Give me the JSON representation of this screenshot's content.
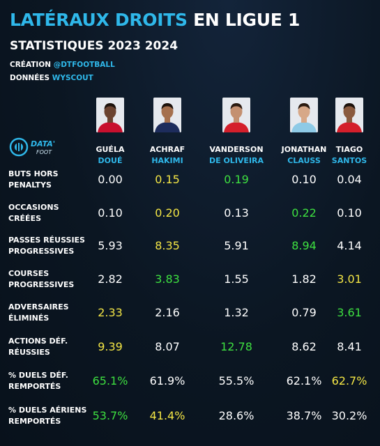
{
  "header": {
    "title_accent": "LATÉRAUX DROITS",
    "title_rest": "EN LIGUE 1",
    "subtitle": "STATISTIQUES  2023 2024",
    "creation_label": "CRÉATION",
    "creation_value": "@DTFOOTBALL",
    "data_label": "DONNÉES",
    "data_value": "WYSCOUT"
  },
  "logo": {
    "text": "DATA'",
    "sub": "FOOT",
    "icon": "data-foot-logo-icon"
  },
  "colors": {
    "accent": "#2fb8ea",
    "best": "#3ee040",
    "second": "#f4e645",
    "normal": "#ffffff",
    "background": "#0b1622"
  },
  "chart_data": {
    "type": "table",
    "title": "LATÉRAUX DROITS EN LIGUE 1",
    "subtitle": "STATISTIQUES  2023 2024",
    "players": [
      {
        "first": "GUÉLA",
        "last": "DOUÉ",
        "kit": "#c8102e",
        "skin": "#6b4330",
        "hair": "#1c120c"
      },
      {
        "first": "ACHRAF",
        "last": "HAKIMI",
        "kit": "#1d2c5c",
        "skin": "#a5704e",
        "hair": "#1c120c"
      },
      {
        "first": "VANDERSON",
        "last": "DE OLIVEIRA",
        "kit": "#d41f2b",
        "skin": "#c49070",
        "hair": "#2a1a10"
      },
      {
        "first": "JONATHAN",
        "last": "CLAUSS",
        "kit": "#8ecae6",
        "skin": "#d7a888",
        "hair": "#2a1a10"
      },
      {
        "first": "TIAGO",
        "last": "SANTOS",
        "kit": "#d41f2b",
        "skin": "#8a5a3e",
        "hair": "#1c120c"
      }
    ],
    "metrics": [
      {
        "label": [
          "BUTS HORS",
          "PENALTYS"
        ],
        "values": [
          "0.00",
          "0.15",
          "0.19",
          "0.10",
          "0.04"
        ],
        "colors": [
          "white",
          "yellow",
          "green",
          "white",
          "white"
        ]
      },
      {
        "label": [
          "OCCASIONS",
          "CRÉÉES"
        ],
        "values": [
          "0.10",
          "0.20",
          "0.13",
          "0.22",
          "0.10"
        ],
        "colors": [
          "white",
          "yellow",
          "white",
          "green",
          "white"
        ]
      },
      {
        "label": [
          "PASSES RÉUSSIES",
          "PROGRESSIVES"
        ],
        "values": [
          "5.93",
          "8.35",
          "5.91",
          "8.94",
          "4.14"
        ],
        "colors": [
          "white",
          "yellow",
          "white",
          "green",
          "white"
        ]
      },
      {
        "label": [
          "COURSES",
          "PROGRESSIVES"
        ],
        "values": [
          "2.82",
          "3.83",
          "1.55",
          "1.82",
          "3.01"
        ],
        "colors": [
          "white",
          "green",
          "white",
          "white",
          "yellow"
        ]
      },
      {
        "label": [
          "ADVERSAIRES",
          "ÉLIMINÉS"
        ],
        "values": [
          "2.33",
          "2.16",
          "1.32",
          "0.79",
          "3.61"
        ],
        "colors": [
          "yellow",
          "white",
          "white",
          "white",
          "green"
        ]
      },
      {
        "label": [
          "ACTIONS DÉF.",
          "RÉUSSIES"
        ],
        "values": [
          "9.39",
          "8.07",
          "12.78",
          "8.62",
          "8.41"
        ],
        "colors": [
          "yellow",
          "white",
          "green",
          "white",
          "white"
        ]
      },
      {
        "label": [
          "% DUELS DÉF.",
          "REMPORTÉS"
        ],
        "values": [
          "65.1%",
          "61.9%",
          "55.5%",
          "62.1%",
          "62.7%"
        ],
        "colors": [
          "green",
          "white",
          "white",
          "white",
          "yellow"
        ]
      },
      {
        "label": [
          "% DUELS AÉRIENS",
          "REMPORTÉS"
        ],
        "values": [
          "53.7%",
          "41.4%",
          "28.6%",
          "38.7%",
          "30.2%"
        ],
        "colors": [
          "green",
          "yellow",
          "white",
          "white",
          "white"
        ]
      }
    ]
  }
}
